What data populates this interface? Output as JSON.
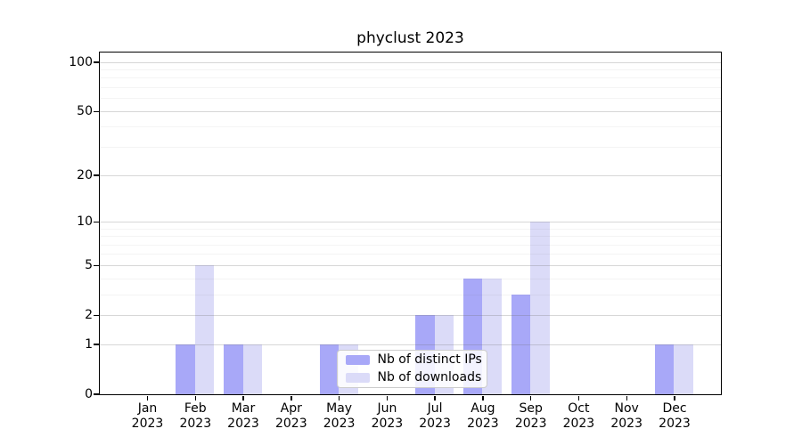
{
  "chart_data": {
    "type": "bar",
    "title": "phyclust 2023",
    "x_months": [
      "Jan",
      "Feb",
      "Mar",
      "Apr",
      "May",
      "Jun",
      "Jul",
      "Aug",
      "Sep",
      "Oct",
      "Nov",
      "Dec"
    ],
    "x_year": "2023",
    "series": [
      {
        "name": "Nb of distinct IPs",
        "color": "#a8a8f8",
        "values": [
          0,
          1,
          1,
          0,
          1,
          0,
          2,
          4,
          3,
          0,
          0,
          1
        ]
      },
      {
        "name": "Nb of downloads",
        "color": "#dbdbf8",
        "values": [
          0,
          5,
          1,
          0,
          1,
          0,
          2,
          4,
          10,
          0,
          0,
          1
        ]
      }
    ],
    "y_scale": "log1p",
    "y_ticks": [
      0,
      1,
      2,
      5,
      10,
      20,
      50,
      100
    ],
    "y_minor_gridlines": [
      3,
      4,
      6,
      7,
      8,
      9,
      30,
      40,
      60,
      70,
      80,
      90
    ],
    "ylim": [
      0,
      115
    ],
    "grid": "on",
    "legend_position": "lower center",
    "colors": {
      "axis": "#000000",
      "major_grid": "#d2d2d2",
      "minor_grid": "#efefef",
      "background": "#ffffff"
    }
  }
}
